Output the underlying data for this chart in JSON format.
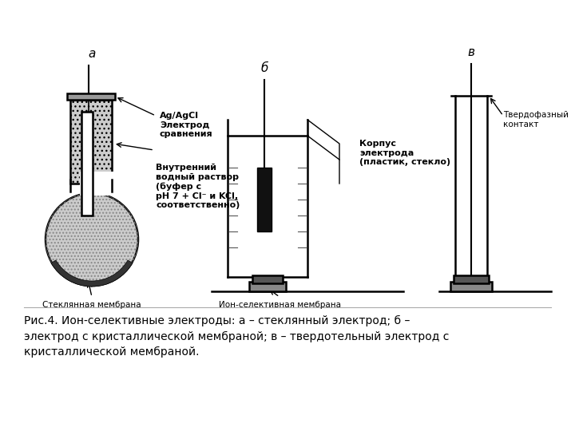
{
  "background_color": "#ffffff",
  "fig_width": 7.2,
  "fig_height": 5.4,
  "dpi": 100,
  "caption": "Рис.4. Ион-селективные электроды: а – стеклянный электрод; б –\nэлектрод с кристаллической мембраной; в – твердотельный электрод с\nкристаллической мембраной.",
  "label_a": "а",
  "label_b": "б",
  "label_c": "в",
  "label_AgAgCl": "Ag/AgCl\nЭлектрод\nсравнения",
  "label_inner": "Внутренний\nводный раствор\n(буфер с\nрН 7 + Cl⁻ и KCl,\nсоответственно)",
  "label_glass_mem": "Стеклянная мембрана",
  "label_body": "Корпус\nэлектрода\n(пластик, стекло)",
  "label_ion_mem": "Ион-селективная мембрана",
  "label_solid": "Твердофазный\nконтакт"
}
